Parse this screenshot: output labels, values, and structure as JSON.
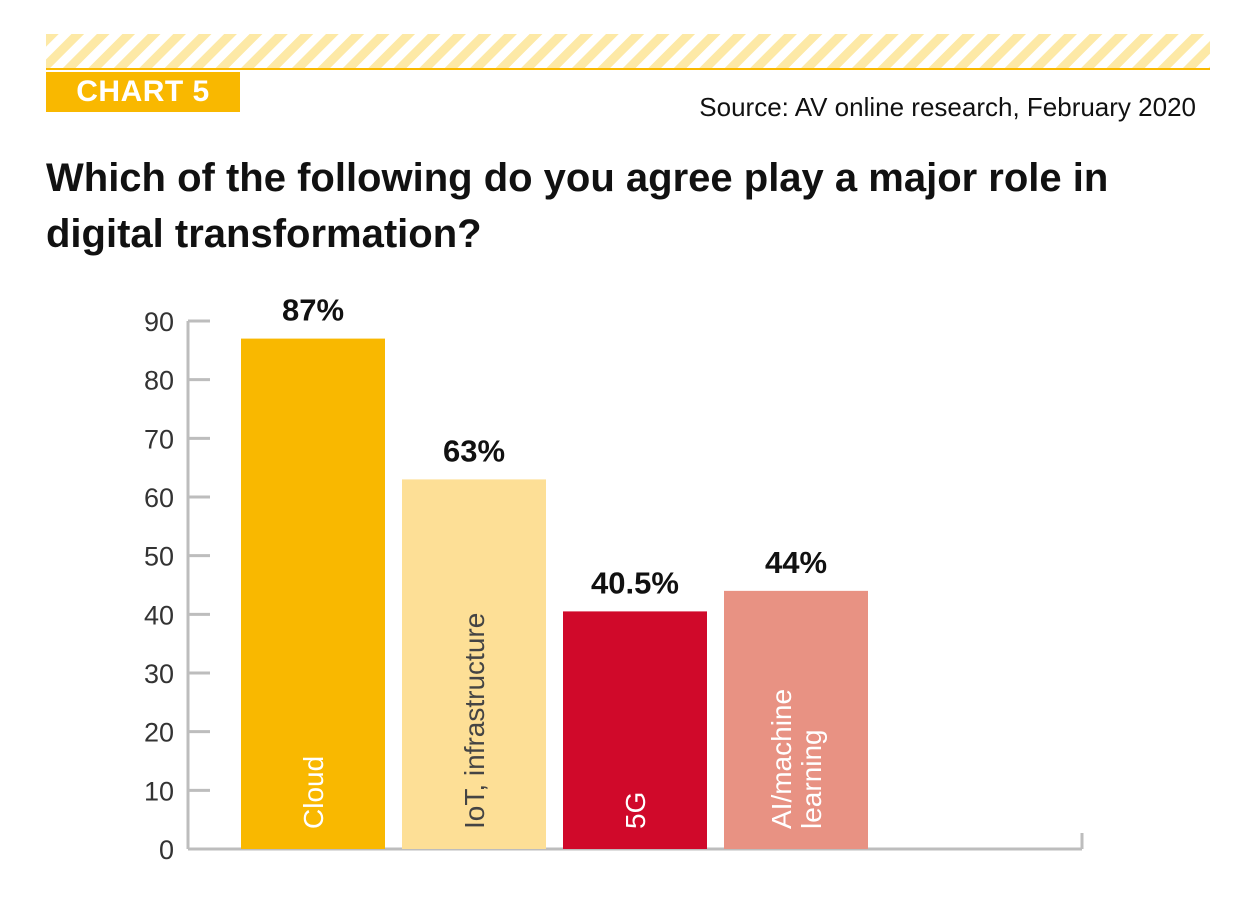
{
  "header": {
    "chart_label": "CHART 5",
    "source": "Source: AV online research, February 2020",
    "accent_color": "#f9b800",
    "stripe_color": "#fde9a6"
  },
  "chart_data": {
    "type": "bar",
    "title": "Which of the following do you agree play a major role in digital transformation?",
    "xlabel": "",
    "ylabel": "",
    "ylim": [
      0,
      90
    ],
    "yticks": [
      0,
      10,
      20,
      30,
      40,
      50,
      60,
      70,
      80,
      90
    ],
    "grid": false,
    "categories": [
      "Cloud",
      "IoT, infrastructure",
      "5G",
      "AI/machine learning"
    ],
    "category_lines": [
      [
        "Cloud"
      ],
      [
        "IoT, infrastructure"
      ],
      [
        "5G"
      ],
      [
        "AI/machine",
        "learning"
      ]
    ],
    "values": [
      87,
      63,
      40.5,
      44
    ],
    "data_labels": [
      "87%",
      "63%",
      "40.5%",
      "44%"
    ],
    "colors": [
      "#f9b800",
      "#fddf96",
      "#d0092a",
      "#e89283"
    ],
    "label_colors": [
      "#ffffff",
      "#444444",
      "#ffffff",
      "#ffffff"
    ]
  }
}
